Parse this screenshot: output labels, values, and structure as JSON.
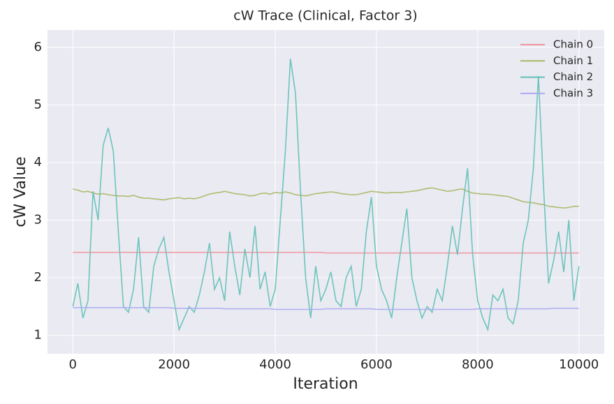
{
  "chart_data": {
    "type": "line",
    "title": "cW Trace (Clinical, Factor 3)",
    "xlabel": "Iteration",
    "ylabel": "cW Value",
    "x": [
      0,
      100,
      200,
      300,
      400,
      500,
      600,
      700,
      800,
      900,
      1000,
      1100,
      1200,
      1300,
      1400,
      1500,
      1600,
      1700,
      1800,
      1900,
      2000,
      2100,
      2200,
      2300,
      2400,
      2500,
      2600,
      2700,
      2800,
      2900,
      3000,
      3100,
      3200,
      3300,
      3400,
      3500,
      3600,
      3700,
      3800,
      3900,
      4000,
      4100,
      4200,
      4300,
      4400,
      4500,
      4600,
      4700,
      4800,
      4900,
      5000,
      5100,
      5200,
      5300,
      5400,
      5500,
      5600,
      5700,
      5800,
      5900,
      6000,
      6100,
      6200,
      6300,
      6400,
      6500,
      6600,
      6700,
      6800,
      6900,
      7000,
      7100,
      7200,
      7300,
      7400,
      7500,
      7600,
      7700,
      7800,
      7900,
      8000,
      8100,
      8200,
      8300,
      8400,
      8500,
      8600,
      8700,
      8800,
      8900,
      9000,
      9100,
      9200,
      9300,
      9400,
      9500,
      9600,
      9700,
      9800,
      9900,
      10000
    ],
    "series": [
      {
        "name": "Chain 0",
        "color": "#f0939f",
        "values": [
          2.44,
          2.44,
          2.44,
          2.44,
          2.44,
          2.44,
          2.44,
          2.44,
          2.44,
          2.44,
          2.44,
          2.44,
          2.44,
          2.44,
          2.44,
          2.44,
          2.44,
          2.44,
          2.44,
          2.44,
          2.44,
          2.44,
          2.44,
          2.44,
          2.44,
          2.44,
          2.44,
          2.44,
          2.44,
          2.44,
          2.44,
          2.44,
          2.44,
          2.44,
          2.44,
          2.44,
          2.44,
          2.44,
          2.44,
          2.44,
          2.44,
          2.44,
          2.44,
          2.44,
          2.44,
          2.44,
          2.44,
          2.44,
          2.44,
          2.44,
          2.43,
          2.43,
          2.43,
          2.43,
          2.43,
          2.43,
          2.43,
          2.43,
          2.43,
          2.43,
          2.43,
          2.43,
          2.43,
          2.43,
          2.43,
          2.43,
          2.43,
          2.43,
          2.43,
          2.43,
          2.43,
          2.43,
          2.43,
          2.43,
          2.43,
          2.43,
          2.43,
          2.43,
          2.43,
          2.43,
          2.43,
          2.43,
          2.43,
          2.43,
          2.43,
          2.43,
          2.43,
          2.43,
          2.43,
          2.43,
          2.43,
          2.43,
          2.43,
          2.43,
          2.43,
          2.43,
          2.43,
          2.43,
          2.43,
          2.43,
          2.43
        ]
      },
      {
        "name": "Chain 1",
        "color": "#a9b762",
        "values": [
          3.54,
          3.52,
          3.49,
          3.5,
          3.47,
          3.45,
          3.46,
          3.44,
          3.43,
          3.42,
          3.42,
          3.41,
          3.43,
          3.4,
          3.38,
          3.38,
          3.37,
          3.36,
          3.35,
          3.37,
          3.38,
          3.39,
          3.37,
          3.38,
          3.37,
          3.39,
          3.42,
          3.45,
          3.47,
          3.48,
          3.5,
          3.48,
          3.46,
          3.45,
          3.44,
          3.42,
          3.43,
          3.46,
          3.47,
          3.45,
          3.48,
          3.47,
          3.49,
          3.47,
          3.44,
          3.43,
          3.42,
          3.44,
          3.46,
          3.47,
          3.48,
          3.49,
          3.48,
          3.46,
          3.45,
          3.44,
          3.44,
          3.46,
          3.48,
          3.5,
          3.49,
          3.48,
          3.47,
          3.48,
          3.48,
          3.48,
          3.49,
          3.5,
          3.51,
          3.53,
          3.55,
          3.56,
          3.54,
          3.52,
          3.5,
          3.51,
          3.53,
          3.54,
          3.5,
          3.47,
          3.46,
          3.45,
          3.45,
          3.44,
          3.43,
          3.42,
          3.41,
          3.38,
          3.35,
          3.32,
          3.31,
          3.3,
          3.28,
          3.27,
          3.24,
          3.23,
          3.22,
          3.21,
          3.22,
          3.24,
          3.24
        ]
      },
      {
        "name": "Chain 2",
        "color": "#5fc0b6",
        "values": [
          1.5,
          1.9,
          1.3,
          1.6,
          3.5,
          3.0,
          4.3,
          4.6,
          4.2,
          2.8,
          1.5,
          1.4,
          1.8,
          2.7,
          1.5,
          1.4,
          2.2,
          2.5,
          2.7,
          2.1,
          1.6,
          1.1,
          1.3,
          1.5,
          1.4,
          1.7,
          2.1,
          2.6,
          1.8,
          2.0,
          1.6,
          2.8,
          2.2,
          1.7,
          2.5,
          2.0,
          2.9,
          1.8,
          2.1,
          1.5,
          1.8,
          3.0,
          4.2,
          5.8,
          5.2,
          3.5,
          2.0,
          1.3,
          2.2,
          1.6,
          1.8,
          2.1,
          1.6,
          1.5,
          2.0,
          2.2,
          1.5,
          1.8,
          2.8,
          3.4,
          2.2,
          1.8,
          1.6,
          1.3,
          2.0,
          2.6,
          3.2,
          2.0,
          1.6,
          1.3,
          1.5,
          1.4,
          1.8,
          1.6,
          2.2,
          2.9,
          2.4,
          3.2,
          3.9,
          2.4,
          1.6,
          1.3,
          1.1,
          1.7,
          1.6,
          1.8,
          1.3,
          1.2,
          1.6,
          2.6,
          3.0,
          3.9,
          5.5,
          3.6,
          1.9,
          2.3,
          2.8,
          2.1,
          3.0,
          1.6,
          2.2
        ]
      },
      {
        "name": "Chain 3",
        "color": "#abaaf2",
        "values": [
          1.48,
          1.48,
          1.48,
          1.48,
          1.48,
          1.48,
          1.48,
          1.48,
          1.48,
          1.48,
          1.48,
          1.48,
          1.48,
          1.48,
          1.48,
          1.48,
          1.48,
          1.48,
          1.48,
          1.48,
          1.47,
          1.47,
          1.47,
          1.47,
          1.47,
          1.47,
          1.47,
          1.47,
          1.47,
          1.47,
          1.46,
          1.46,
          1.46,
          1.46,
          1.46,
          1.46,
          1.46,
          1.46,
          1.46,
          1.46,
          1.45,
          1.45,
          1.45,
          1.45,
          1.45,
          1.45,
          1.45,
          1.45,
          1.45,
          1.45,
          1.46,
          1.46,
          1.46,
          1.46,
          1.46,
          1.46,
          1.46,
          1.46,
          1.46,
          1.46,
          1.45,
          1.45,
          1.45,
          1.45,
          1.45,
          1.45,
          1.45,
          1.45,
          1.45,
          1.45,
          1.45,
          1.45,
          1.45,
          1.45,
          1.45,
          1.45,
          1.45,
          1.45,
          1.45,
          1.45,
          1.46,
          1.46,
          1.46,
          1.46,
          1.46,
          1.46,
          1.46,
          1.46,
          1.46,
          1.46,
          1.46,
          1.46,
          1.46,
          1.46,
          1.46,
          1.47,
          1.47,
          1.47,
          1.47,
          1.47,
          1.47
        ]
      }
    ],
    "xlim": [
      -500,
      10500
    ],
    "ylim": [
      0.68,
      6.3
    ],
    "xticks": [
      0,
      2000,
      4000,
      6000,
      8000,
      10000
    ],
    "yticks": [
      1,
      2,
      3,
      4,
      5,
      6
    ],
    "grid": true,
    "legend": "upper right"
  }
}
